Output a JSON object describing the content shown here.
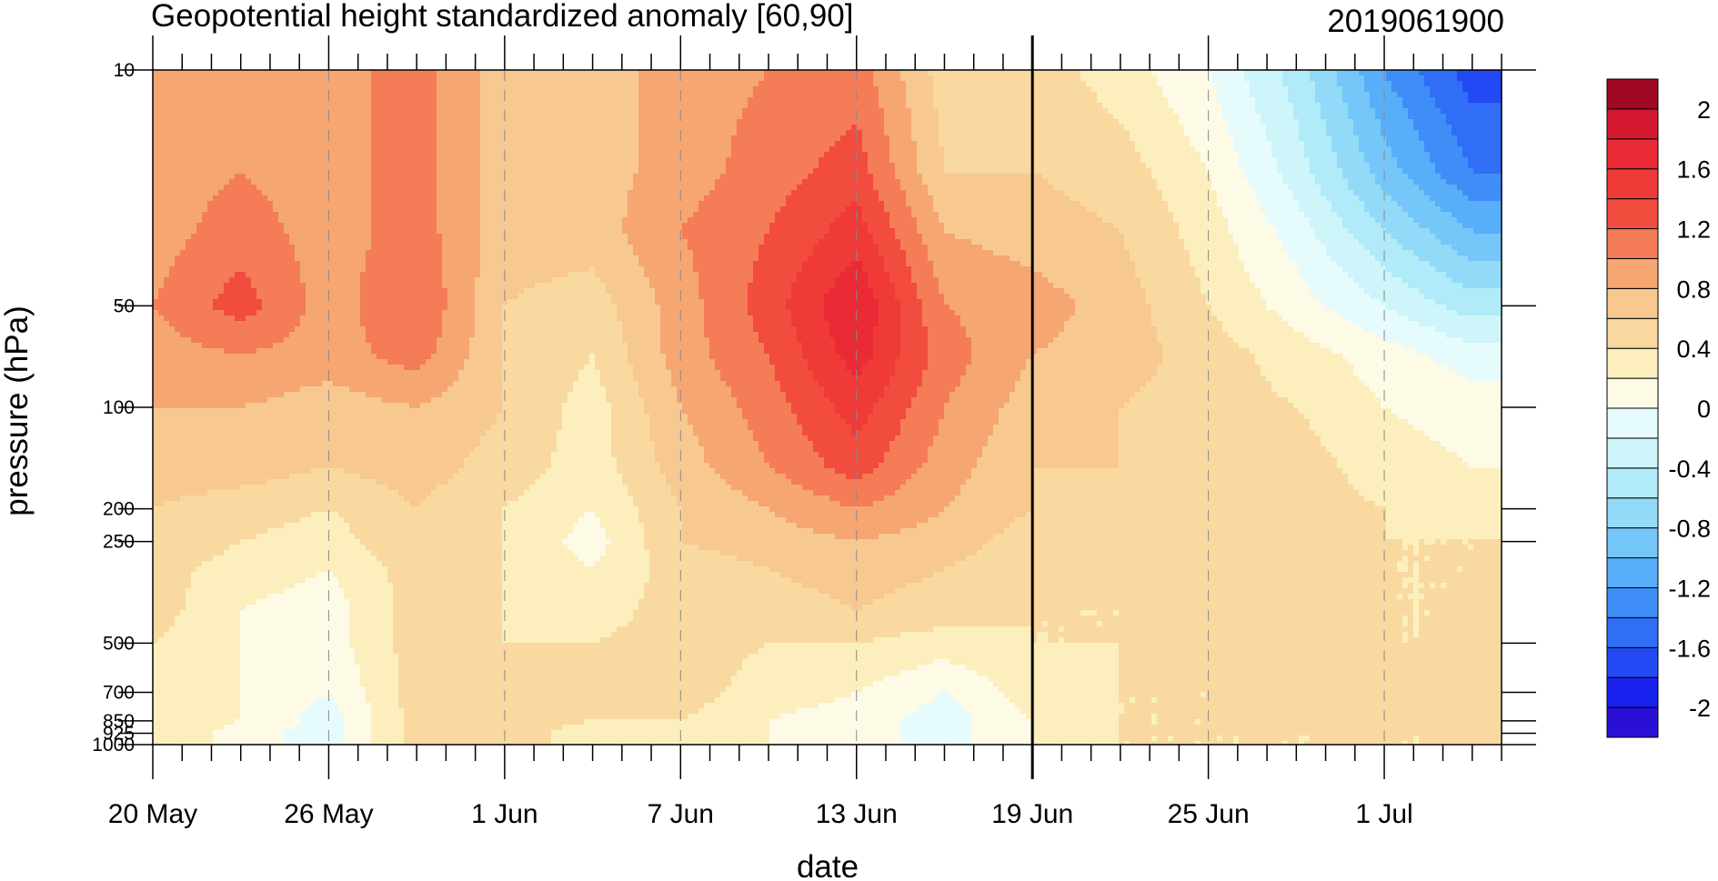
{
  "chart_data": {
    "type": "heatmap",
    "title": "Geopotential height standardized anomaly [60,90]",
    "timestamp": "2019061900",
    "xlabel": "date",
    "ylabel": "pressure (hPa)",
    "y_scale": "log",
    "y_inverted": true,
    "x_range": [
      "2019-05-20",
      "2019-07-05"
    ],
    "y_range": [
      1000,
      10
    ],
    "x_ticks": [
      {
        "date": "2019-05-20",
        "label": "20 May"
      },
      {
        "date": "2019-05-26",
        "label": "26 May"
      },
      {
        "date": "2019-06-01",
        "label": "1 Jun"
      },
      {
        "date": "2019-06-07",
        "label": "7 Jun"
      },
      {
        "date": "2019-06-13",
        "label": "13 Jun"
      },
      {
        "date": "2019-06-19",
        "label": "19 Jun"
      },
      {
        "date": "2019-06-25",
        "label": "25 Jun"
      },
      {
        "date": "2019-07-01",
        "label": "1 Jul"
      }
    ],
    "y_ticks": [
      {
        "value": 10,
        "label": "10"
      },
      {
        "value": 50,
        "label": "50"
      },
      {
        "value": 100,
        "label": "100"
      },
      {
        "value": 200,
        "label": "200"
      },
      {
        "value": 250,
        "label": "250"
      },
      {
        "value": 500,
        "label": "500"
      },
      {
        "value": 700,
        "label": "700"
      },
      {
        "value": 850,
        "label": "850"
      },
      {
        "value": 925,
        "label": "925"
      },
      {
        "value": 1000,
        "label": "1000"
      }
    ],
    "vertical_line_date": "2019-06-19",
    "grid": "dashed vertical at labeled dates",
    "levels": [
      -2.2,
      -2,
      -1.8,
      -1.6,
      -1.4,
      -1.2,
      -1,
      -0.8,
      -0.6,
      -0.4,
      -0.2,
      0,
      0.2,
      0.4,
      0.6,
      0.8,
      1,
      1.2,
      1.4,
      1.6,
      1.8,
      2,
      2.2
    ],
    "colorbar_labels": [
      {
        "value": 2,
        "label": "2"
      },
      {
        "value": 1.6,
        "label": "1.6"
      },
      {
        "value": 1.2,
        "label": "1.2"
      },
      {
        "value": 0.8,
        "label": "0.8"
      },
      {
        "value": 0.4,
        "label": "0.4"
      },
      {
        "value": 0,
        "label": "0"
      },
      {
        "value": -0.4,
        "label": "-0.4"
      },
      {
        "value": -0.8,
        "label": "-0.8"
      },
      {
        "value": -1.2,
        "label": "-1.2"
      },
      {
        "value": -1.6,
        "label": "-1.6"
      },
      {
        "value": -2,
        "label": "-2"
      }
    ],
    "colors": [
      "#2a0fd6",
      "#1922ef",
      "#2249f3",
      "#2f6ef5",
      "#3f8ef7",
      "#58aef8",
      "#75c6f9",
      "#93daf9",
      "#b1eaf9",
      "#cdf5fa",
      "#e6fbfc",
      "#fdfae6",
      "#fcefbd",
      "#f9d9a0",
      "#f8c891",
      "#f6a671",
      "#f47c57",
      "#f24c3e",
      "#ef3a37",
      "#ea2b35",
      "#d41830",
      "#a00823"
    ],
    "anomaly_field": {
      "pressure_levels": [
        10,
        20,
        30,
        50,
        70,
        100,
        150,
        200,
        250,
        300,
        400,
        500,
        700,
        850,
        925,
        1000
      ],
      "dates": [
        "2019-05-20",
        "2019-05-23",
        "2019-05-26",
        "2019-05-29",
        "2019-06-01",
        "2019-06-04",
        "2019-06-07",
        "2019-06-10",
        "2019-06-13",
        "2019-06-16",
        "2019-06-19",
        "2019-06-22",
        "2019-06-25",
        "2019-06-28",
        "2019-07-01",
        "2019-07-04"
      ],
      "values": [
        [
          0.9,
          0.9,
          0.9,
          1.1,
          0.7,
          0.7,
          0.9,
          1.0,
          1.1,
          0.5,
          0.5,
          0.3,
          0.0,
          -0.5,
          -1.2,
          -1.7
        ],
        [
          0.9,
          1.0,
          0.9,
          1.1,
          0.7,
          0.7,
          0.9,
          1.1,
          1.3,
          0.6,
          0.6,
          0.5,
          0.2,
          -0.3,
          -0.9,
          -1.4
        ],
        [
          0.9,
          1.1,
          0.9,
          1.1,
          0.7,
          0.7,
          1.0,
          1.2,
          1.5,
          0.8,
          0.7,
          0.6,
          0.3,
          -0.1,
          -0.6,
          -1.0
        ],
        [
          1.0,
          1.3,
          0.9,
          1.2,
          0.6,
          0.5,
          0.9,
          1.3,
          1.8,
          1.0,
          0.9,
          0.7,
          0.4,
          0.1,
          -0.2,
          -0.5
        ],
        [
          0.9,
          1.0,
          0.9,
          1.1,
          0.6,
          0.4,
          0.9,
          1.2,
          1.7,
          1.1,
          0.8,
          0.7,
          0.5,
          0.3,
          0.1,
          -0.1
        ],
        [
          0.8,
          0.8,
          0.7,
          0.8,
          0.6,
          0.3,
          0.8,
          1.1,
          1.5,
          1.0,
          0.7,
          0.6,
          0.5,
          0.4,
          0.2,
          0.1
        ],
        [
          0.7,
          0.7,
          0.6,
          0.7,
          0.5,
          0.3,
          0.7,
          1.0,
          1.3,
          0.9,
          0.6,
          0.6,
          0.5,
          0.5,
          0.3,
          0.2
        ],
        [
          0.6,
          0.5,
          0.4,
          0.6,
          0.4,
          0.2,
          0.6,
          0.8,
          1.0,
          0.8,
          0.6,
          0.5,
          0.5,
          0.5,
          0.4,
          0.3
        ],
        [
          0.6,
          0.4,
          0.3,
          0.6,
          0.4,
          0.1,
          0.6,
          0.7,
          0.8,
          0.7,
          0.5,
          0.5,
          0.5,
          0.5,
          0.4,
          0.4
        ],
        [
          0.5,
          0.3,
          0.2,
          0.5,
          0.4,
          0.2,
          0.5,
          0.6,
          0.7,
          0.6,
          0.5,
          0.5,
          0.5,
          0.4,
          0.4,
          0.4
        ],
        [
          0.5,
          0.2,
          0.1,
          0.5,
          0.4,
          0.3,
          0.5,
          0.5,
          0.6,
          0.5,
          0.4,
          0.4,
          0.5,
          0.5,
          0.4,
          0.4
        ],
        [
          0.4,
          0.2,
          0.1,
          0.5,
          0.4,
          0.4,
          0.5,
          0.4,
          0.4,
          0.3,
          0.4,
          0.4,
          0.5,
          0.5,
          0.4,
          0.4
        ],
        [
          0.4,
          0.2,
          0.0,
          0.5,
          0.5,
          0.4,
          0.5,
          0.3,
          0.2,
          0.0,
          0.3,
          0.4,
          0.4,
          0.5,
          0.5,
          0.5
        ],
        [
          0.4,
          0.2,
          -0.1,
          0.5,
          0.5,
          0.4,
          0.4,
          0.2,
          0.1,
          -0.1,
          0.2,
          0.4,
          0.4,
          0.5,
          0.5,
          0.4
        ],
        [
          0.4,
          0.1,
          -0.1,
          0.5,
          0.5,
          0.3,
          0.4,
          0.2,
          0.1,
          -0.1,
          0.2,
          0.4,
          0.4,
          0.4,
          0.4,
          0.4
        ],
        [
          0.4,
          0.1,
          -0.1,
          0.5,
          0.5,
          0.3,
          0.4,
          0.2,
          0.1,
          -0.1,
          0.2,
          0.4,
          0.4,
          0.4,
          0.4,
          0.4
        ]
      ]
    }
  }
}
